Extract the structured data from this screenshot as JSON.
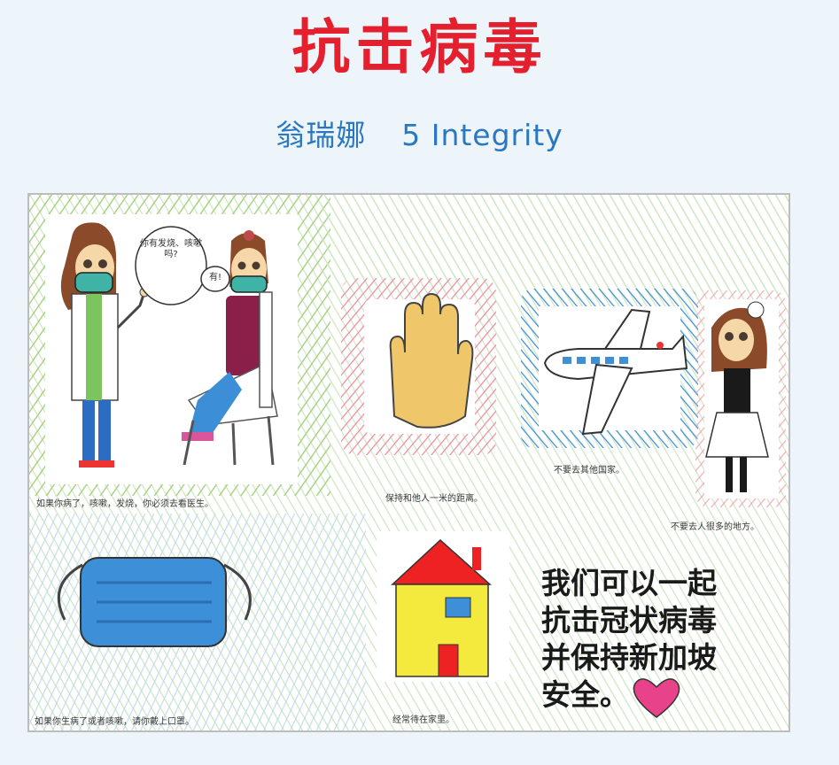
{
  "title": "抗击病毒",
  "author": {
    "name": "翁瑞娜",
    "class_name": "5 Integrity"
  },
  "colors": {
    "title": "#e4202f",
    "author": "#2a78c0",
    "background": "#edf4fa"
  },
  "drawing": {
    "speech_doctor": "你有发烧、咳嗽吗?",
    "speech_patient": "有!",
    "caption_doctor": "如果你病了，咳嗽，发烧，你必须去看医生。",
    "caption_hand": "保持和他人一米的距离。",
    "caption_plane": "不要去其他国家。",
    "caption_girl": "不要去人很多的地方。",
    "caption_mask": "如果你生病了或者咳嗽，请你戴上口罩。",
    "caption_house": "经常待在家里。",
    "slogan_lines": [
      "我们可以一起",
      "抗击冠状病毒",
      "并保持新加坡",
      "安全。"
    ],
    "heart_icon": "heart-icon"
  }
}
